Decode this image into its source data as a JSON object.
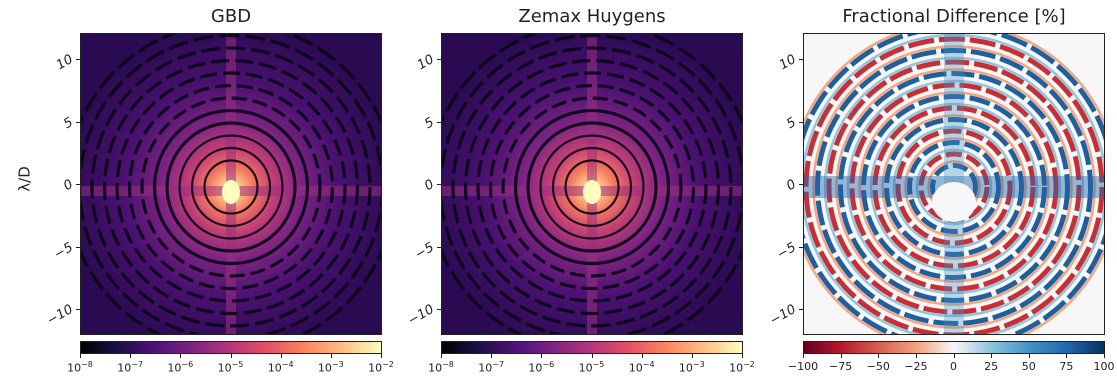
{
  "ylabel": "λ/D",
  "panels": [
    {
      "title": "GBD",
      "cmap": "magma"
    },
    {
      "title": "Zemax Huygens",
      "cmap": "magma"
    },
    {
      "title": "Fractional Difference [%]",
      "cmap": "RdBu"
    }
  ],
  "yticks": [
    "10",
    "5",
    "0",
    "−5",
    "−10"
  ],
  "log_colorbar": {
    "base": "10",
    "exponents": [
      "−8",
      "−7",
      "−6",
      "−5",
      "−4",
      "−3",
      "−2"
    ]
  },
  "diff_colorbar": {
    "ticks": [
      "−100",
      "−75",
      "−50",
      "−25",
      "0",
      "25",
      "50",
      "75",
      "100"
    ]
  },
  "chart_data": [
    {
      "type": "heatmap",
      "title": "GBD",
      "ylabel": "λ/D",
      "xlim": [
        -12,
        12
      ],
      "ylim": [
        -12,
        12
      ],
      "yticks": [
        10,
        5,
        0,
        -5,
        -10
      ],
      "colormap": "magma",
      "color_scale": "log",
      "color_range": [
        1e-08,
        0.01
      ],
      "colorbar_ticks": [
        "10^-8",
        "10^-7",
        "10^-6",
        "10^-5",
        "10^-4",
        "10^-3",
        "10^-2"
      ]
    },
    {
      "type": "heatmap",
      "title": "Zemax Huygens",
      "xlim": [
        -12,
        12
      ],
      "ylim": [
        -12,
        12
      ],
      "yticks": [
        10,
        5,
        0,
        -5,
        -10
      ],
      "colormap": "magma",
      "color_scale": "log",
      "color_range": [
        1e-08,
        0.01
      ],
      "colorbar_ticks": [
        "10^-8",
        "10^-7",
        "10^-6",
        "10^-5",
        "10^-4",
        "10^-3",
        "10^-2"
      ]
    },
    {
      "type": "heatmap",
      "title": "Fractional Difference [%]",
      "xlim": [
        -12,
        12
      ],
      "ylim": [
        -12,
        12
      ],
      "yticks": [
        10,
        5,
        0,
        -5,
        -10
      ],
      "colormap": "RdBu",
      "color_scale": "linear",
      "color_range": [
        -100,
        100
      ],
      "colorbar_ticks": [
        -100,
        -75,
        -50,
        -25,
        0,
        25,
        50,
        75,
        100
      ]
    }
  ]
}
